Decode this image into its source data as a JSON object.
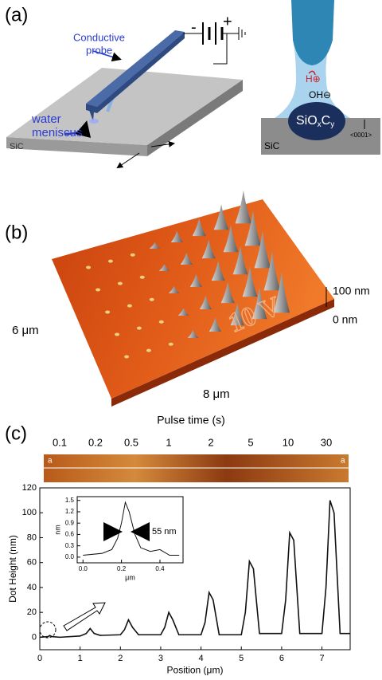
{
  "panel_labels": [
    "(a)",
    "(b)",
    "(c)"
  ],
  "panel_a": {
    "probe_label": [
      "Conductive",
      "probe"
    ],
    "meniscus_label": [
      "water",
      "meniscus"
    ],
    "substrate": "SiC",
    "minus": "-",
    "plus": "+",
    "right": {
      "h_ion": "H⊕",
      "oh_ion": "OH⊖",
      "oxide": [
        "SiO",
        "x",
        "C",
        "y"
      ],
      "substrate": "SiC",
      "direction": "<0001>"
    }
  },
  "panel_b": {
    "y_size": "6 μm",
    "x_size": "8 μm",
    "z_top": "100 nm",
    "z_bottom": "0 nm",
    "engraving": "10 V"
  },
  "panel_c": {
    "strip_title": "Pulse time (s)",
    "pulse_times": [
      "0.1",
      "0.2",
      "0.5",
      "1",
      "2",
      "5",
      "10",
      "30"
    ],
    "strip_marks": [
      "a",
      "a"
    ]
  },
  "chart_data": [
    {
      "type": "line",
      "xlabel": "Position (μm)",
      "ylabel": "Dot Height (nm)",
      "color": "#111111",
      "x": [
        0,
        0.2,
        0.25,
        0.3,
        0.5,
        1.0,
        1.15,
        1.25,
        1.35,
        1.5,
        2.0,
        2.1,
        2.2,
        2.3,
        2.45,
        3.0,
        3.1,
        3.2,
        3.3,
        3.45,
        4.0,
        4.1,
        4.2,
        4.3,
        4.45,
        5.0,
        5.1,
        5.2,
        5.3,
        5.45,
        6.0,
        6.1,
        6.2,
        6.3,
        6.45,
        7.0,
        7.1,
        7.2,
        7.3,
        7.45,
        7.7
      ],
      "values": [
        0,
        0.5,
        1.4,
        0.5,
        0,
        1,
        3,
        7,
        3,
        1.5,
        2,
        6,
        14,
        8,
        2,
        2,
        8,
        20,
        14,
        2,
        2,
        12,
        36,
        30,
        2,
        2,
        20,
        61,
        55,
        3,
        3,
        30,
        84,
        78,
        3,
        3,
        40,
        110,
        100,
        3,
        3
      ],
      "xlim": [
        0,
        7.7
      ],
      "xticks": [
        0,
        1,
        2,
        3,
        4,
        5,
        6,
        7
      ],
      "ylim": [
        -10,
        120
      ],
      "yticks": [
        0,
        20,
        40,
        60,
        80,
        100,
        120
      ]
    },
    {
      "type": "line",
      "xlabel": "μm",
      "ylabel": "nm",
      "color": "#111111",
      "annotation": "55 nm",
      "x": [
        0,
        0.1,
        0.15,
        0.18,
        0.2,
        0.22,
        0.24,
        0.27,
        0.3,
        0.35,
        0.4,
        0.45,
        0.5
      ],
      "values": [
        0.05,
        0.1,
        0.2,
        0.5,
        0.9,
        1.45,
        1.2,
        0.6,
        0.25,
        0.15,
        0.2,
        0.05,
        0.05
      ],
      "xlim": [
        -0.03,
        0.52
      ],
      "xticks": [
        {
          "value": 0,
          "label": "0.0"
        },
        0.2,
        0.4
      ],
      "ylim": [
        -0.15,
        1.6
      ],
      "yticks": [
        {
          "value": 0,
          "label": "0.0"
        },
        0.3,
        0.6,
        0.9,
        1.2,
        1.5
      ]
    }
  ]
}
